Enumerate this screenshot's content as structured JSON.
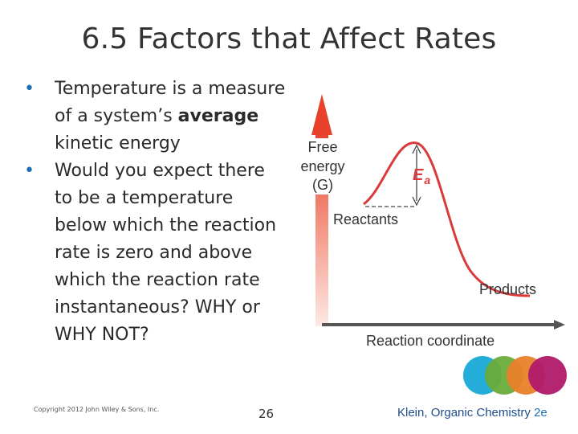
{
  "slide": {
    "title": "6.5 Factors that Affect Rates",
    "bullets": [
      {
        "lines": [
          [
            {
              "text": "Temperature is a measure",
              "bold": false
            }
          ],
          [
            {
              "text": "of a system’s ",
              "bold": false
            },
            {
              "text": "average",
              "bold": true
            }
          ],
          [
            {
              "text": "kinetic energy",
              "bold": false
            }
          ]
        ]
      },
      {
        "lines": [
          [
            {
              "text": "Would you expect there",
              "bold": false
            }
          ],
          [
            {
              "text": "to be a temperature",
              "bold": false
            }
          ],
          [
            {
              "text": "below which the reaction",
              "bold": false
            }
          ],
          [
            {
              "text": "rate is zero and above",
              "bold": false
            }
          ],
          [
            {
              "text": "which the reaction rate",
              "bold": false
            }
          ],
          [
            {
              "text": "instantaneous?  WHY or",
              "bold": false
            }
          ],
          [
            {
              "text": "WHY NOT?",
              "bold": false
            }
          ]
        ]
      }
    ],
    "copyright": "Copyright 2012 John Wiley & Sons, Inc.",
    "page_number": "26",
    "credit": {
      "main": "Klein, Organic Chemistry ",
      "edition": "2e"
    }
  },
  "diagram": {
    "y_axis_label_lines": [
      "Free",
      "energy",
      "(G)"
    ],
    "x_axis_label": "Reaction coordinate",
    "reactants_label": "Reactants",
    "products_label": "Products",
    "activation_label_main": "E",
    "activation_label_sub": "a",
    "colors": {
      "curve": "#d93a3a",
      "arrow": "#e8412c",
      "axis": "#555555",
      "dashed": "#444444"
    },
    "logo_circles": [
      "#18a9d6",
      "#6aab3a",
      "#e8812a",
      "#b01a6a"
    ]
  }
}
